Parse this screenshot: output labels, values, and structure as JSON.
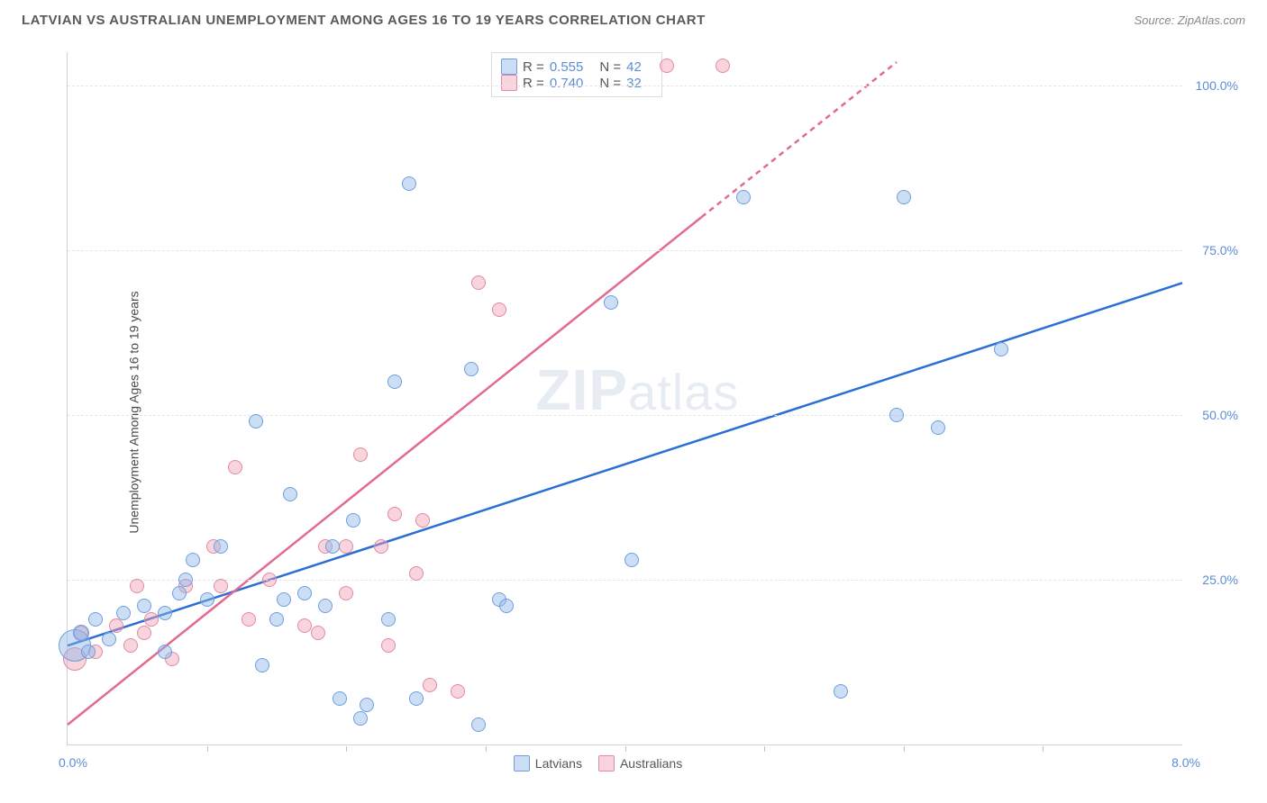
{
  "header": {
    "title": "LATVIAN VS AUSTRALIAN UNEMPLOYMENT AMONG AGES 16 TO 19 YEARS CORRELATION CHART",
    "source": "Source: ZipAtlas.com"
  },
  "watermark": "ZIPatlas",
  "chart": {
    "type": "scatter",
    "ylabel": "Unemployment Among Ages 16 to 19 years",
    "xlim": [
      0,
      8
    ],
    "ylim": [
      0,
      105
    ],
    "xlabel_min": "0.0%",
    "xlabel_max": "8.0%",
    "yticks": [
      {
        "v": 25,
        "label": "25.0%"
      },
      {
        "v": 50,
        "label": "50.0%"
      },
      {
        "v": 75,
        "label": "75.0%"
      },
      {
        "v": 100,
        "label": "100.0%"
      }
    ],
    "xticks_minor": [
      1,
      2,
      3,
      4,
      5,
      6,
      7
    ],
    "grid_color": "#e5e5e5",
    "background_color": "#ffffff",
    "series": {
      "latvians": {
        "label": "Latvians",
        "fill": "rgba(143,181,230,0.45)",
        "stroke": "#6d9fe0",
        "trend_color": "#2b6fd4",
        "R": "0.555",
        "N": "42",
        "trend": {
          "x1": 0,
          "y1": 15,
          "x2": 8,
          "y2": 70
        },
        "points": [
          {
            "x": 0.05,
            "y": 15,
            "r": 18
          },
          {
            "x": 0.1,
            "y": 17,
            "r": 9
          },
          {
            "x": 0.15,
            "y": 14,
            "r": 8
          },
          {
            "x": 0.2,
            "y": 19,
            "r": 8
          },
          {
            "x": 0.3,
            "y": 16,
            "r": 8
          },
          {
            "x": 0.4,
            "y": 20,
            "r": 8
          },
          {
            "x": 0.55,
            "y": 21,
            "r": 8
          },
          {
            "x": 0.7,
            "y": 14,
            "r": 8
          },
          {
            "x": 0.7,
            "y": 20,
            "r": 8
          },
          {
            "x": 0.8,
            "y": 23,
            "r": 8
          },
          {
            "x": 0.85,
            "y": 25,
            "r": 8
          },
          {
            "x": 0.9,
            "y": 28,
            "r": 8
          },
          {
            "x": 1.0,
            "y": 22,
            "r": 8
          },
          {
            "x": 1.1,
            "y": 30,
            "r": 8
          },
          {
            "x": 1.35,
            "y": 49,
            "r": 8
          },
          {
            "x": 1.4,
            "y": 12,
            "r": 8
          },
          {
            "x": 1.5,
            "y": 19,
            "r": 8
          },
          {
            "x": 1.55,
            "y": 22,
            "r": 8
          },
          {
            "x": 1.6,
            "y": 38,
            "r": 8
          },
          {
            "x": 1.7,
            "y": 23,
            "r": 8
          },
          {
            "x": 1.85,
            "y": 21,
            "r": 8
          },
          {
            "x": 1.9,
            "y": 30,
            "r": 8
          },
          {
            "x": 1.95,
            "y": 7,
            "r": 8
          },
          {
            "x": 2.05,
            "y": 34,
            "r": 8
          },
          {
            "x": 2.1,
            "y": 4,
            "r": 8
          },
          {
            "x": 2.15,
            "y": 6,
            "r": 8
          },
          {
            "x": 2.3,
            "y": 19,
            "r": 8
          },
          {
            "x": 2.35,
            "y": 55,
            "r": 8
          },
          {
            "x": 2.45,
            "y": 85,
            "r": 8
          },
          {
            "x": 2.5,
            "y": 7,
            "r": 8
          },
          {
            "x": 2.9,
            "y": 57,
            "r": 8
          },
          {
            "x": 2.95,
            "y": 3,
            "r": 8
          },
          {
            "x": 3.1,
            "y": 22,
            "r": 8
          },
          {
            "x": 3.15,
            "y": 21,
            "r": 8
          },
          {
            "x": 3.9,
            "y": 67,
            "r": 8
          },
          {
            "x": 4.05,
            "y": 28,
            "r": 8
          },
          {
            "x": 4.85,
            "y": 83,
            "r": 8
          },
          {
            "x": 5.55,
            "y": 8,
            "r": 8
          },
          {
            "x": 5.95,
            "y": 50,
            "r": 8
          },
          {
            "x": 6.0,
            "y": 83,
            "r": 8
          },
          {
            "x": 6.25,
            "y": 48,
            "r": 8
          },
          {
            "x": 6.7,
            "y": 60,
            "r": 8
          }
        ]
      },
      "australians": {
        "label": "Australians",
        "fill": "rgba(240,160,180,0.45)",
        "stroke": "#e389a3",
        "trend_color": "#e36a8f",
        "R": "0.740",
        "N": "32",
        "trend": {
          "x1": 0,
          "y1": 3,
          "x2": 4.55,
          "y2": 80,
          "x3": 5.95,
          "y3": 103.5
        },
        "points": [
          {
            "x": 0.05,
            "y": 13,
            "r": 13
          },
          {
            "x": 0.1,
            "y": 17,
            "r": 8
          },
          {
            "x": 0.2,
            "y": 14,
            "r": 8
          },
          {
            "x": 0.35,
            "y": 18,
            "r": 8
          },
          {
            "x": 0.45,
            "y": 15,
            "r": 8
          },
          {
            "x": 0.5,
            "y": 24,
            "r": 8
          },
          {
            "x": 0.55,
            "y": 17,
            "r": 8
          },
          {
            "x": 0.6,
            "y": 19,
            "r": 8
          },
          {
            "x": 0.75,
            "y": 13,
            "r": 8
          },
          {
            "x": 0.85,
            "y": 24,
            "r": 8
          },
          {
            "x": 1.05,
            "y": 30,
            "r": 8
          },
          {
            "x": 1.1,
            "y": 24,
            "r": 8
          },
          {
            "x": 1.2,
            "y": 42,
            "r": 8
          },
          {
            "x": 1.3,
            "y": 19,
            "r": 8
          },
          {
            "x": 1.45,
            "y": 25,
            "r": 8
          },
          {
            "x": 1.7,
            "y": 18,
            "r": 8
          },
          {
            "x": 1.8,
            "y": 17,
            "r": 8
          },
          {
            "x": 1.85,
            "y": 30,
            "r": 8
          },
          {
            "x": 2.0,
            "y": 30,
            "r": 8
          },
          {
            "x": 2.0,
            "y": 23,
            "r": 8
          },
          {
            "x": 2.1,
            "y": 44,
            "r": 8
          },
          {
            "x": 2.25,
            "y": 30,
            "r": 8
          },
          {
            "x": 2.3,
            "y": 15,
            "r": 8
          },
          {
            "x": 2.35,
            "y": 35,
            "r": 8
          },
          {
            "x": 2.5,
            "y": 26,
            "r": 8
          },
          {
            "x": 2.55,
            "y": 34,
            "r": 8
          },
          {
            "x": 2.6,
            "y": 9,
            "r": 8
          },
          {
            "x": 2.8,
            "y": 8,
            "r": 8
          },
          {
            "x": 2.95,
            "y": 70,
            "r": 8
          },
          {
            "x": 3.1,
            "y": 66,
            "r": 8
          },
          {
            "x": 4.3,
            "y": 103,
            "r": 8
          },
          {
            "x": 4.7,
            "y": 103,
            "r": 8
          }
        ]
      }
    },
    "legend_top_labels": {
      "R": "R =",
      "N": "N ="
    },
    "stat_color": "#5b8dd6",
    "marker_opacity": 0.45,
    "axis_fontsize": 14,
    "title_fontsize": 15
  }
}
